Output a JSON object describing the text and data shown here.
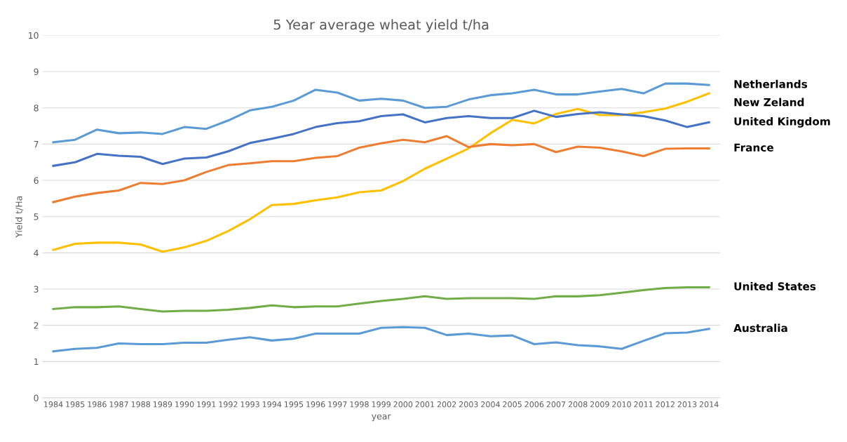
{
  "chart_data": {
    "type": "line",
    "title": "5 Year average wheat yield t/ha",
    "xlabel": "year",
    "ylabel": "Yield t/Ha",
    "categories": [
      "1984",
      "1985",
      "1986",
      "1987",
      "1988",
      "1989",
      "1990",
      "1991",
      "1992",
      "1993",
      "1994",
      "1995",
      "1996",
      "1997",
      "1998",
      "1999",
      "2000",
      "2001",
      "2002",
      "2003",
      "2004",
      "2005",
      "2006",
      "2007",
      "2008",
      "2009",
      "2010",
      "2011",
      "2012",
      "2013",
      "2014"
    ],
    "series": [
      {
        "name": "Netherlands",
        "color": "#5b9bd5",
        "values": [
          7.05,
          7.12,
          7.4,
          7.3,
          7.32,
          7.28,
          7.47,
          7.42,
          7.65,
          7.93,
          8.03,
          8.2,
          8.5,
          8.42,
          8.2,
          8.25,
          8.2,
          8.0,
          8.03,
          8.23,
          8.35,
          8.4,
          8.5,
          8.37,
          8.37,
          8.45,
          8.52,
          8.4,
          8.67,
          8.67,
          8.63
        ]
      },
      {
        "name": "New Zeland",
        "color": "#ffc000",
        "values": [
          4.08,
          4.25,
          4.28,
          4.28,
          4.23,
          4.03,
          4.15,
          4.33,
          4.6,
          4.93,
          5.32,
          5.35,
          5.45,
          5.53,
          5.67,
          5.72,
          5.98,
          6.32,
          6.6,
          6.88,
          7.3,
          7.67,
          7.57,
          7.83,
          7.97,
          7.8,
          7.8,
          7.88,
          7.98,
          8.17,
          8.4
        ]
      },
      {
        "name": "United Kingdom",
        "color": "#4472c4",
        "values": [
          6.4,
          6.5,
          6.73,
          6.68,
          6.65,
          6.45,
          6.6,
          6.63,
          6.8,
          7.03,
          7.15,
          7.28,
          7.47,
          7.58,
          7.63,
          7.77,
          7.82,
          7.6,
          7.72,
          7.77,
          7.72,
          7.72,
          7.92,
          7.75,
          7.83,
          7.88,
          7.82,
          7.77,
          7.65,
          7.47,
          7.6
        ]
      },
      {
        "name": "France",
        "color": "#ed7d31",
        "values": [
          5.4,
          5.55,
          5.65,
          5.72,
          5.93,
          5.9,
          6.0,
          6.23,
          6.42,
          6.47,
          6.53,
          6.53,
          6.62,
          6.67,
          6.9,
          7.02,
          7.12,
          7.05,
          7.22,
          6.92,
          7.0,
          6.97,
          7.0,
          6.78,
          6.93,
          6.9,
          6.8,
          6.67,
          6.87,
          6.88,
          6.88
        ]
      },
      {
        "name": "United States",
        "color": "#70ad47",
        "values": [
          2.45,
          2.5,
          2.5,
          2.52,
          2.45,
          2.38,
          2.4,
          2.4,
          2.43,
          2.48,
          2.55,
          2.5,
          2.52,
          2.52,
          2.6,
          2.67,
          2.73,
          2.8,
          2.73,
          2.75,
          2.75,
          2.75,
          2.73,
          2.8,
          2.8,
          2.83,
          2.9,
          2.97,
          3.03,
          3.05,
          3.05
        ]
      },
      {
        "name": "Australia",
        "color": "#5b9bd5",
        "values": [
          1.28,
          1.35,
          1.38,
          1.5,
          1.48,
          1.48,
          1.52,
          1.52,
          1.6,
          1.67,
          1.58,
          1.63,
          1.77,
          1.77,
          1.77,
          1.93,
          1.95,
          1.93,
          1.73,
          1.77,
          1.7,
          1.72,
          1.48,
          1.53,
          1.45,
          1.42,
          1.35,
          1.57,
          1.78,
          1.8,
          1.9
        ]
      }
    ],
    "ylim": [
      0,
      10
    ],
    "yticks": [
      0,
      1,
      2,
      3,
      4,
      5,
      6,
      7,
      8,
      9,
      10
    ],
    "grid": "y",
    "legend": false,
    "marker": "none",
    "line_style": "solid"
  }
}
